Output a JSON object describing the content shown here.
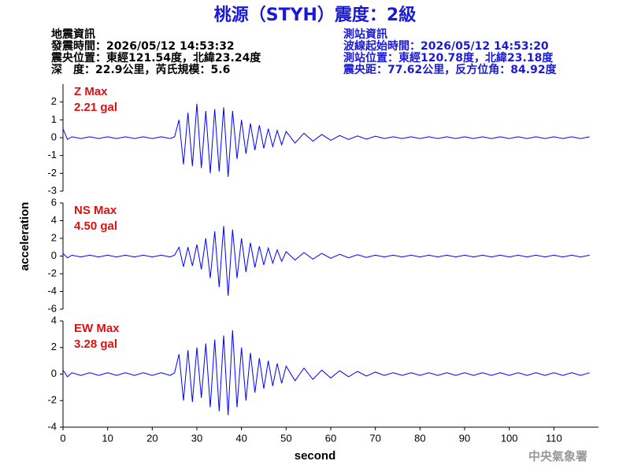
{
  "header": {
    "title": "桃源（STYH）震度：2級",
    "left": [
      "地震資訊",
      "發震時間：2026/05/12 14:53:32",
      "震央位置：東經121.54度，北緯23.24度",
      "深　度：22.9公里，芮氏規模：5.6"
    ],
    "right": [
      "測站資訊",
      "波線起始時間：2026/05/12 14:53:20",
      "測站位置：東經120.78度，北緯23.18度",
      "震央距：77.62公里，反方位角：84.92度"
    ],
    "footer": "中央氣象署"
  },
  "chart_data": [
    {
      "type": "line",
      "annotations": [
        "Z Max",
        "2.21 gal"
      ],
      "color": "#0000ff",
      "x": [
        0,
        1,
        2,
        4,
        6,
        8,
        10,
        12,
        14,
        16,
        18,
        20,
        22,
        24,
        25,
        26,
        27,
        28,
        29,
        30,
        31,
        32,
        33,
        34,
        35,
        36,
        37,
        38,
        39,
        40,
        41,
        42,
        43,
        44,
        45,
        46,
        47,
        48,
        49,
        50,
        52,
        54,
        56,
        58,
        60,
        62,
        64,
        66,
        68,
        70,
        72,
        74,
        76,
        78,
        80,
        82,
        84,
        86,
        88,
        90,
        92,
        94,
        96,
        98,
        100,
        102,
        104,
        106,
        108,
        110,
        112,
        114,
        116,
        118
      ],
      "values": [
        0.5,
        -0.1,
        0.05,
        -0.05,
        0.05,
        -0.05,
        0.05,
        -0.05,
        0.05,
        -0.05,
        0.05,
        -0.05,
        0.05,
        -0.05,
        0.05,
        1.0,
        -1.5,
        1.4,
        -1.6,
        1.9,
        -1.7,
        1.5,
        -2.0,
        1.6,
        -1.9,
        1.7,
        -2.2,
        1.5,
        -1.2,
        1.0,
        -0.9,
        0.8,
        -0.7,
        0.7,
        -0.6,
        0.5,
        -0.5,
        0.4,
        -0.4,
        0.35,
        -0.3,
        0.25,
        -0.2,
        0.18,
        -0.15,
        0.12,
        -0.1,
        0.1,
        -0.08,
        0.08,
        -0.05,
        0.05,
        -0.05,
        0.05,
        -0.05,
        0.05,
        -0.05,
        0.05,
        -0.05,
        0.05,
        -0.05,
        0.05,
        -0.05,
        0.05,
        -0.05,
        0.05,
        -0.05,
        0.05,
        -0.05,
        0.05,
        -0.05,
        0.05,
        -0.05,
        0.05
      ],
      "xlim": [
        0,
        120
      ],
      "ylim": [
        -3,
        3
      ],
      "yticks": [
        -3,
        -2,
        -1,
        0,
        1,
        2
      ]
    },
    {
      "type": "line",
      "annotations": [
        "NS Max",
        "4.50 gal"
      ],
      "color": "#0000ff",
      "ylabel": "acceleration",
      "x": [
        0,
        1,
        2,
        4,
        6,
        8,
        10,
        12,
        14,
        16,
        18,
        20,
        22,
        24,
        25,
        26,
        27,
        28,
        29,
        30,
        31,
        32,
        33,
        34,
        35,
        36,
        37,
        38,
        39,
        40,
        41,
        42,
        43,
        44,
        45,
        46,
        47,
        48,
        49,
        50,
        52,
        54,
        56,
        58,
        60,
        62,
        64,
        66,
        68,
        70,
        72,
        74,
        76,
        78,
        80,
        82,
        84,
        86,
        88,
        90,
        92,
        94,
        96,
        98,
        100,
        102,
        104,
        106,
        108,
        110,
        112,
        114,
        116,
        118
      ],
      "values": [
        0.3,
        -0.2,
        0.1,
        -0.1,
        0.1,
        -0.1,
        0.1,
        -0.1,
        0.1,
        -0.1,
        0.1,
        -0.1,
        0.1,
        -0.1,
        0.1,
        1.0,
        -1.2,
        1.0,
        -1.1,
        1.3,
        -1.5,
        2.0,
        -2.5,
        2.8,
        -3.5,
        3.4,
        -4.5,
        3.0,
        -2.5,
        2.0,
        -1.8,
        1.5,
        -1.3,
        1.1,
        -1.0,
        0.9,
        -0.8,
        0.7,
        -0.6,
        0.5,
        -0.45,
        0.4,
        -0.35,
        0.3,
        -0.25,
        0.2,
        -0.2,
        0.15,
        -0.15,
        0.1,
        -0.1,
        0.1,
        -0.1,
        0.1,
        -0.1,
        0.1,
        -0.1,
        0.1,
        -0.1,
        0.1,
        -0.1,
        0.1,
        -0.1,
        0.1,
        -0.1,
        0.1,
        -0.1,
        0.1,
        -0.1,
        0.1,
        -0.1,
        0.1,
        -0.1,
        0.1
      ],
      "xlim": [
        0,
        120
      ],
      "ylim": [
        -6,
        6
      ],
      "yticks": [
        -6,
        -4,
        -2,
        0,
        2,
        4,
        6
      ]
    },
    {
      "type": "line",
      "annotations": [
        "EW Max",
        "3.28 gal"
      ],
      "color": "#0000ff",
      "xlabel": "second",
      "x": [
        0,
        1,
        2,
        4,
        6,
        8,
        10,
        12,
        14,
        16,
        18,
        20,
        22,
        24,
        25,
        26,
        27,
        28,
        29,
        30,
        31,
        32,
        33,
        34,
        35,
        36,
        37,
        38,
        39,
        40,
        41,
        42,
        43,
        44,
        45,
        46,
        47,
        48,
        49,
        50,
        52,
        54,
        56,
        58,
        60,
        62,
        64,
        66,
        68,
        70,
        72,
        74,
        76,
        78,
        80,
        82,
        84,
        86,
        88,
        90,
        92,
        94,
        96,
        98,
        100,
        102,
        104,
        106,
        108,
        110,
        112,
        114,
        116,
        118
      ],
      "values": [
        0.3,
        -0.2,
        0.1,
        -0.1,
        0.1,
        -0.1,
        0.1,
        -0.1,
        0.1,
        -0.1,
        0.1,
        -0.1,
        0.1,
        -0.1,
        0.1,
        1.5,
        -2.0,
        1.8,
        -2.1,
        2.0,
        -1.8,
        2.3,
        -2.5,
        2.6,
        -2.8,
        2.9,
        -3.1,
        3.3,
        -2.5,
        2.0,
        -2.0,
        1.6,
        -1.4,
        1.2,
        -1.1,
        1.0,
        -0.9,
        0.8,
        -0.7,
        0.6,
        -0.5,
        0.45,
        -0.4,
        0.3,
        -0.3,
        0.25,
        -0.2,
        0.2,
        -0.15,
        0.15,
        -0.1,
        0.1,
        -0.1,
        0.1,
        -0.1,
        0.1,
        -0.1,
        0.1,
        -0.1,
        0.1,
        -0.1,
        0.1,
        -0.1,
        0.1,
        -0.1,
        0.1,
        -0.1,
        0.1,
        -0.1,
        0.1,
        -0.1,
        0.1,
        -0.1,
        0.1
      ],
      "xlim": [
        0,
        120
      ],
      "ylim": [
        -4,
        4
      ],
      "yticks": [
        -4,
        -2,
        0,
        2,
        4
      ],
      "xticks": [
        0,
        10,
        20,
        30,
        40,
        50,
        60,
        70,
        80,
        90,
        100,
        110
      ]
    }
  ]
}
